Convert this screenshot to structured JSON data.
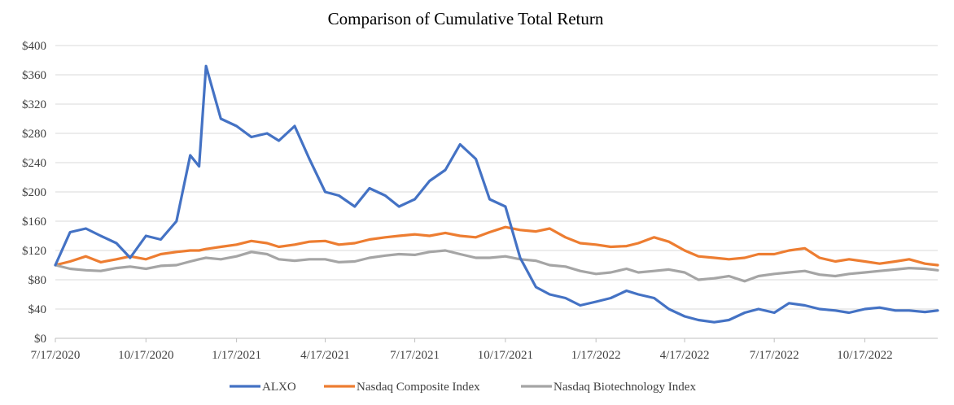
{
  "chart_data": {
    "type": "line",
    "title": "Comparison of Cumulative Total Return",
    "xlabel": "",
    "ylabel": "",
    "ylim": [
      0,
      400
    ],
    "y_ticks": [
      "$0",
      "$40",
      "$80",
      "$120",
      "$160",
      "$200",
      "$240",
      "$280",
      "$320",
      "$360",
      "$400"
    ],
    "x_ticks": [
      "7/17/2020",
      "10/17/2020",
      "1/17/2021",
      "4/17/2021",
      "7/17/2021",
      "10/17/2021",
      "1/17/2022",
      "4/17/2022",
      "7/17/2022",
      "10/17/2022"
    ],
    "x": [
      "7/17/2020",
      "8/1/2020",
      "8/17/2020",
      "9/1/2020",
      "9/17/2020",
      "10/1/2020",
      "10/17/2020",
      "11/1/2020",
      "11/17/2020",
      "12/1/2020",
      "12/10/2020",
      "12/17/2020",
      "1/1/2021",
      "1/17/2021",
      "2/1/2021",
      "2/17/2021",
      "3/1/2021",
      "3/17/2021",
      "4/1/2021",
      "4/17/2021",
      "5/1/2021",
      "5/17/2021",
      "6/1/2021",
      "6/17/2021",
      "7/1/2021",
      "7/17/2021",
      "8/1/2021",
      "8/17/2021",
      "9/1/2021",
      "9/17/2021",
      "10/1/2021",
      "10/17/2021",
      "11/1/2021",
      "11/17/2021",
      "12/1/2021",
      "12/17/2021",
      "1/1/2022",
      "1/17/2022",
      "2/1/2022",
      "2/17/2022",
      "3/1/2022",
      "3/17/2022",
      "4/1/2022",
      "4/17/2022",
      "5/1/2022",
      "5/17/2022",
      "6/1/2022",
      "6/17/2022",
      "7/1/2022",
      "7/17/2022",
      "8/1/2022",
      "8/17/2022",
      "9/1/2022",
      "9/17/2022",
      "10/1/2022",
      "10/17/2022",
      "11/1/2022",
      "11/17/2022",
      "12/1/2022",
      "12/17/2022",
      "12/30/2022"
    ],
    "series": [
      {
        "name": "ALXO",
        "color": "#4472c4",
        "values": [
          100,
          145,
          150,
          140,
          130,
          110,
          140,
          135,
          160,
          250,
          235,
          372,
          300,
          290,
          275,
          280,
          270,
          290,
          245,
          200,
          195,
          180,
          205,
          195,
          180,
          190,
          215,
          230,
          265,
          245,
          190,
          180,
          110,
          70,
          60,
          55,
          45,
          50,
          55,
          65,
          60,
          55,
          40,
          30,
          25,
          22,
          25,
          35,
          40,
          35,
          48,
          45,
          40,
          38,
          35,
          40,
          42,
          38,
          38,
          36,
          38
        ]
      },
      {
        "name": "Nasdaq Composite Index",
        "color": "#ed7d31",
        "values": [
          100,
          105,
          112,
          104,
          108,
          112,
          108,
          115,
          118,
          120,
          120,
          122,
          125,
          128,
          133,
          130,
          125,
          128,
          132,
          133,
          128,
          130,
          135,
          138,
          140,
          142,
          140,
          144,
          140,
          138,
          145,
          152,
          148,
          146,
          150,
          138,
          130,
          128,
          125,
          126,
          130,
          138,
          132,
          120,
          112,
          110,
          108,
          110,
          115,
          115,
          120,
          123,
          110,
          105,
          108,
          105,
          102,
          105,
          108,
          102,
          100
        ]
      },
      {
        "name": "Nasdaq Biotechnology Index",
        "color": "#a5a5a5",
        "values": [
          100,
          95,
          93,
          92,
          96,
          98,
          95,
          99,
          100,
          105,
          108,
          110,
          108,
          112,
          118,
          115,
          108,
          106,
          108,
          108,
          104,
          105,
          110,
          113,
          115,
          114,
          118,
          120,
          115,
          110,
          110,
          112,
          108,
          106,
          100,
          98,
          92,
          88,
          90,
          95,
          90,
          92,
          94,
          90,
          80,
          82,
          85,
          78,
          85,
          88,
          90,
          92,
          87,
          85,
          88,
          90,
          92,
          94,
          96,
          95,
          93
        ]
      }
    ],
    "legend": "bottom",
    "grid": true
  }
}
